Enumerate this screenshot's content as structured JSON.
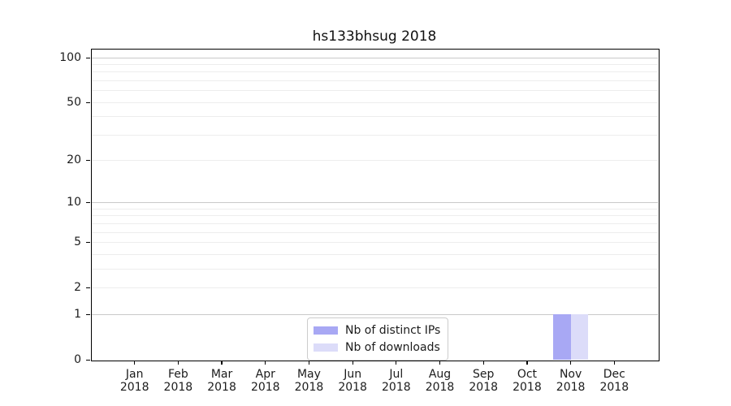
{
  "chart_data": {
    "type": "bar",
    "title": "hs133bhsug 2018",
    "categories": [
      {
        "label": "Jan",
        "year": "2018"
      },
      {
        "label": "Feb",
        "year": "2018"
      },
      {
        "label": "Mar",
        "year": "2018"
      },
      {
        "label": "Apr",
        "year": "2018"
      },
      {
        "label": "May",
        "year": "2018"
      },
      {
        "label": "Jun",
        "year": "2018"
      },
      {
        "label": "Jul",
        "year": "2018"
      },
      {
        "label": "Aug",
        "year": "2018"
      },
      {
        "label": "Sep",
        "year": "2018"
      },
      {
        "label": "Oct",
        "year": "2018"
      },
      {
        "label": "Nov",
        "year": "2018"
      },
      {
        "label": "Dec",
        "year": "2018"
      }
    ],
    "series": [
      {
        "name": "Nb of distinct IPs",
        "color": "#a8a8f4",
        "values": [
          0,
          0,
          0,
          0,
          0,
          0,
          0,
          0,
          0,
          0,
          1,
          0
        ]
      },
      {
        "name": "Nb of downloads",
        "color": "#dcdcf9",
        "values": [
          0,
          0,
          0,
          0,
          0,
          0,
          0,
          0,
          0,
          0,
          1,
          0
        ]
      }
    ],
    "y_axis": {
      "scale": "log1p",
      "tick_labels": [
        0,
        1,
        2,
        5,
        10,
        20,
        50,
        100
      ],
      "gridlines_strong": [
        1,
        10,
        100
      ],
      "gridlines_faint": [
        2,
        3,
        4,
        5,
        6,
        7,
        8,
        9,
        20,
        30,
        40,
        50,
        60,
        70,
        80,
        90
      ],
      "ylim": [
        0,
        115
      ]
    },
    "grid": "horizontal",
    "legend": {
      "position": "inside-bottom-center",
      "entries": [
        "Nb of distinct IPs",
        "Nb of downloads"
      ]
    }
  }
}
